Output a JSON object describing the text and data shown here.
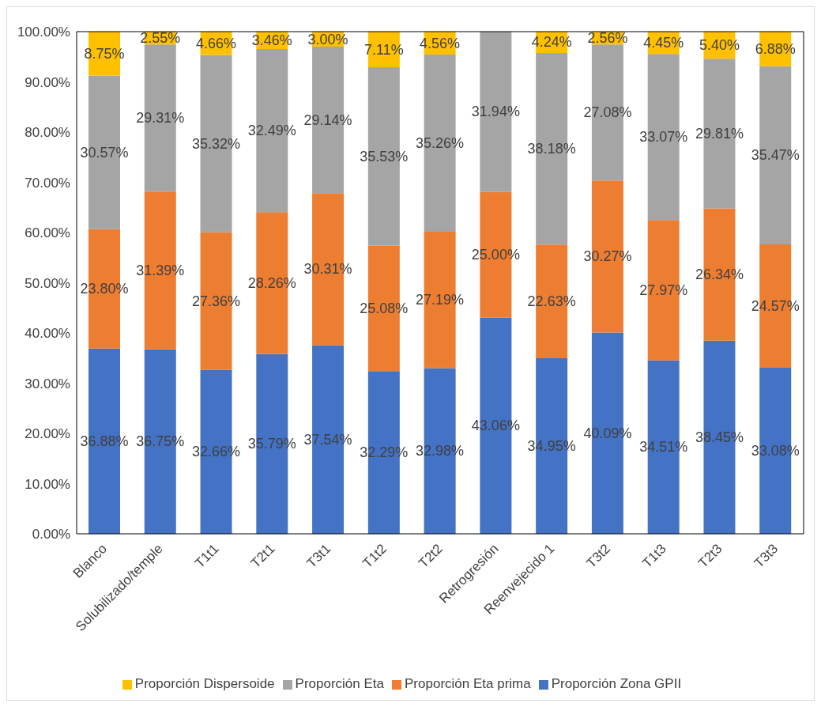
{
  "chart_data": {
    "type": "bar",
    "stacked": true,
    "categories": [
      "Blanco",
      "Solubilizado/temple",
      "T1t1",
      "T2t1",
      "T3t1",
      "T1t2",
      "T2t2",
      "Retrogresión",
      "Reenvejecido 1",
      "T3t2",
      "T1t3",
      "T2t3",
      "T3t3"
    ],
    "series": [
      {
        "name": "Proporción Zona GPII",
        "color": "#4472c4",
        "values": [
          36.88,
          36.75,
          32.66,
          35.79,
          37.54,
          32.29,
          32.98,
          43.06,
          34.95,
          40.09,
          34.51,
          38.45,
          33.08
        ],
        "value_labels": [
          "36.88%",
          "36.75%",
          "32.66%",
          "35.79%",
          "37.54%",
          "32.29%",
          "32.98%",
          "43.06%",
          "34.95%",
          "40.09%",
          "34.51%",
          "38.45%",
          "33.08%"
        ]
      },
      {
        "name": "Proporción Eta prima",
        "color": "#ed7d31",
        "values": [
          23.8,
          31.39,
          27.36,
          28.26,
          30.31,
          25.08,
          27.19,
          25.0,
          22.63,
          30.27,
          27.97,
          26.34,
          24.57
        ],
        "value_labels": [
          "23.80%",
          "31.39%",
          "27.36%",
          "28.26%",
          "30.31%",
          "25.08%",
          "27.19%",
          "25.00%",
          "22.63%",
          "30.27%",
          "27.97%",
          "26.34%",
          "24.57%"
        ]
      },
      {
        "name": "Proporción Eta",
        "color": "#a5a5a5",
        "values": [
          30.57,
          29.31,
          35.32,
          32.49,
          29.14,
          35.53,
          35.26,
          31.94,
          38.18,
          27.08,
          33.07,
          29.81,
          35.47
        ],
        "value_labels": [
          "30.57%",
          "29.31%",
          "35.32%",
          "32.49%",
          "29.14%",
          "35.53%",
          "35.26%",
          "31.94%",
          "38.18%",
          "27.08%",
          "33.07%",
          "29.81%",
          "35.47%"
        ]
      },
      {
        "name": "Proporción Dispersoide",
        "color": "#ffc000",
        "values": [
          8.75,
          2.55,
          4.66,
          3.46,
          3.0,
          7.11,
          4.56,
          null,
          4.24,
          2.56,
          4.45,
          5.4,
          6.88
        ],
        "value_labels": [
          "8.75%",
          "2.55%",
          "4.66%",
          "3.46%",
          "3.00%",
          "7.11%",
          "4.56%",
          null,
          "4.24%",
          "2.56%",
          "4.45%",
          "5.40%",
          "6.88%"
        ]
      }
    ],
    "ylim": [
      0,
      100
    ],
    "yticks": [
      {
        "value": 0,
        "label": "0.00%"
      },
      {
        "value": 10,
        "label": "10.00%"
      },
      {
        "value": 20,
        "label": "20.00%"
      },
      {
        "value": 30,
        "label": "30.00%"
      },
      {
        "value": 40,
        "label": "40.00%"
      },
      {
        "value": 50,
        "label": "50.00%"
      },
      {
        "value": 60,
        "label": "60.00%"
      },
      {
        "value": 70,
        "label": "70.00%"
      },
      {
        "value": 80,
        "label": "80.00%"
      },
      {
        "value": 90,
        "label": "90.00%"
      },
      {
        "value": 100,
        "label": "100.00%"
      }
    ],
    "grid": false,
    "legend": "bottom"
  }
}
